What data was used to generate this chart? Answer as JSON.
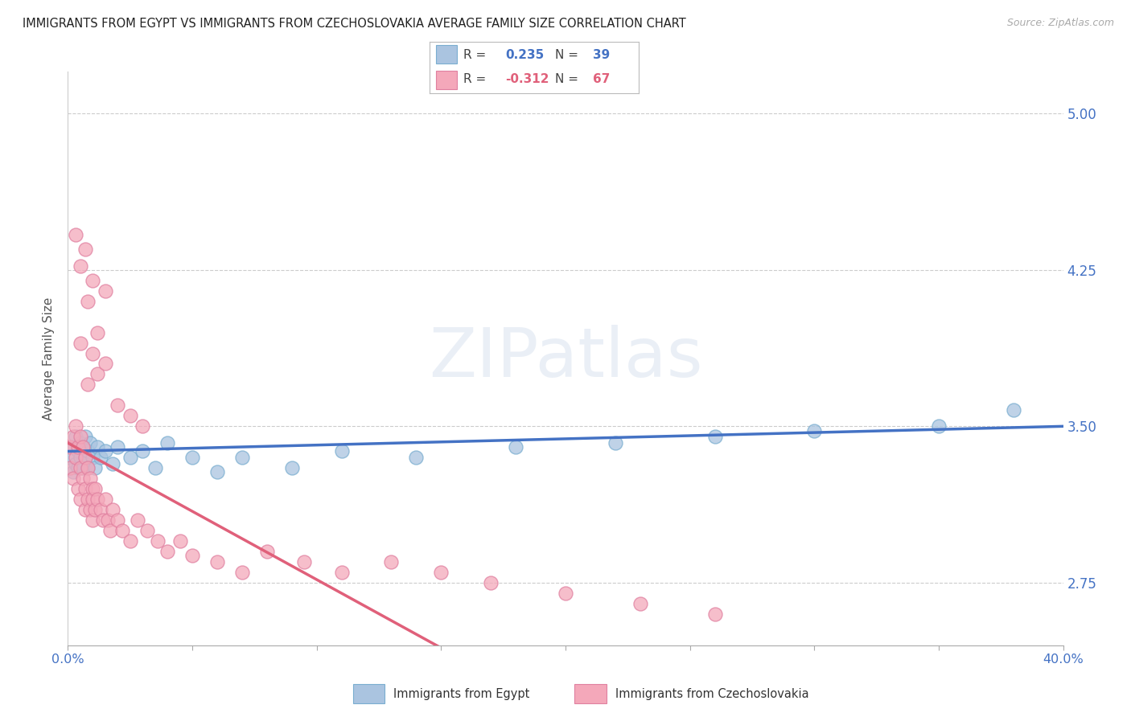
{
  "title": "IMMIGRANTS FROM EGYPT VS IMMIGRANTS FROM CZECHOSLOVAKIA AVERAGE FAMILY SIZE CORRELATION CHART",
  "source": "Source: ZipAtlas.com",
  "ylabel": "Average Family Size",
  "xlim": [
    0.0,
    0.4
  ],
  "ylim": [
    2.45,
    5.2
  ],
  "yticks": [
    2.75,
    3.5,
    4.25,
    5.0
  ],
  "xtick_positions": [
    0.0,
    0.05,
    0.1,
    0.15,
    0.2,
    0.25,
    0.3,
    0.35,
    0.4
  ],
  "xtick_labels": [
    "0.0%",
    "",
    "",
    "",
    "",
    "",
    "",
    "",
    "40.0%"
  ],
  "egypt_color": "#aac4e0",
  "egypt_edge_color": "#7aaed0",
  "egypt_line_color": "#4472c4",
  "czech_color": "#f4a8ba",
  "czech_edge_color": "#e080a0",
  "czech_line_color": "#e0607a",
  "egypt_R": 0.235,
  "egypt_N": 39,
  "czech_R": -0.312,
  "czech_N": 67,
  "watermark": "ZIPatlas",
  "bg_color": "#ffffff",
  "grid_color": "#cccccc",
  "title_color": "#222222",
  "label_color": "#555555",
  "right_tick_color": "#4472c4",
  "legend_box_color": "#f0f0f0",
  "egypt_x": [
    0.001,
    0.002,
    0.002,
    0.003,
    0.003,
    0.004,
    0.004,
    0.005,
    0.005,
    0.006,
    0.006,
    0.007,
    0.007,
    0.008,
    0.008,
    0.009,
    0.01,
    0.011,
    0.012,
    0.013,
    0.015,
    0.018,
    0.02,
    0.025,
    0.03,
    0.035,
    0.04,
    0.05,
    0.06,
    0.07,
    0.09,
    0.11,
    0.14,
    0.18,
    0.22,
    0.26,
    0.3,
    0.35,
    0.38
  ],
  "egypt_y": [
    3.35,
    3.4,
    3.28,
    3.45,
    3.32,
    3.38,
    3.3,
    3.42,
    3.35,
    3.4,
    3.3,
    3.45,
    3.35,
    3.38,
    3.3,
    3.42,
    3.35,
    3.3,
    3.4,
    3.35,
    3.38,
    3.32,
    3.4,
    3.35,
    3.38,
    3.3,
    3.42,
    3.35,
    3.28,
    3.35,
    3.3,
    3.38,
    3.35,
    3.4,
    3.42,
    3.45,
    3.48,
    3.5,
    3.58
  ],
  "czech_x": [
    0.001,
    0.001,
    0.002,
    0.002,
    0.003,
    0.003,
    0.004,
    0.004,
    0.005,
    0.005,
    0.005,
    0.006,
    0.006,
    0.007,
    0.007,
    0.007,
    0.008,
    0.008,
    0.009,
    0.009,
    0.01,
    0.01,
    0.01,
    0.011,
    0.011,
    0.012,
    0.013,
    0.014,
    0.015,
    0.016,
    0.017,
    0.018,
    0.02,
    0.022,
    0.025,
    0.028,
    0.032,
    0.036,
    0.04,
    0.045,
    0.05,
    0.06,
    0.07,
    0.08,
    0.095,
    0.11,
    0.13,
    0.15,
    0.17,
    0.2,
    0.23,
    0.26,
    0.005,
    0.008,
    0.01,
    0.012,
    0.015,
    0.02,
    0.025,
    0.03,
    0.008,
    0.012,
    0.003,
    0.005,
    0.007,
    0.01,
    0.015
  ],
  "czech_y": [
    3.3,
    3.4,
    3.45,
    3.25,
    3.5,
    3.35,
    3.4,
    3.2,
    3.45,
    3.3,
    3.15,
    3.4,
    3.25,
    3.35,
    3.2,
    3.1,
    3.3,
    3.15,
    3.25,
    3.1,
    3.2,
    3.05,
    3.15,
    3.2,
    3.1,
    3.15,
    3.1,
    3.05,
    3.15,
    3.05,
    3.0,
    3.1,
    3.05,
    3.0,
    2.95,
    3.05,
    3.0,
    2.95,
    2.9,
    2.95,
    2.88,
    2.85,
    2.8,
    2.9,
    2.85,
    2.8,
    2.85,
    2.8,
    2.75,
    2.7,
    2.65,
    2.6,
    3.9,
    3.7,
    3.85,
    3.75,
    3.8,
    3.6,
    3.55,
    3.5,
    4.1,
    3.95,
    4.42,
    4.27,
    4.35,
    4.2,
    4.15
  ]
}
